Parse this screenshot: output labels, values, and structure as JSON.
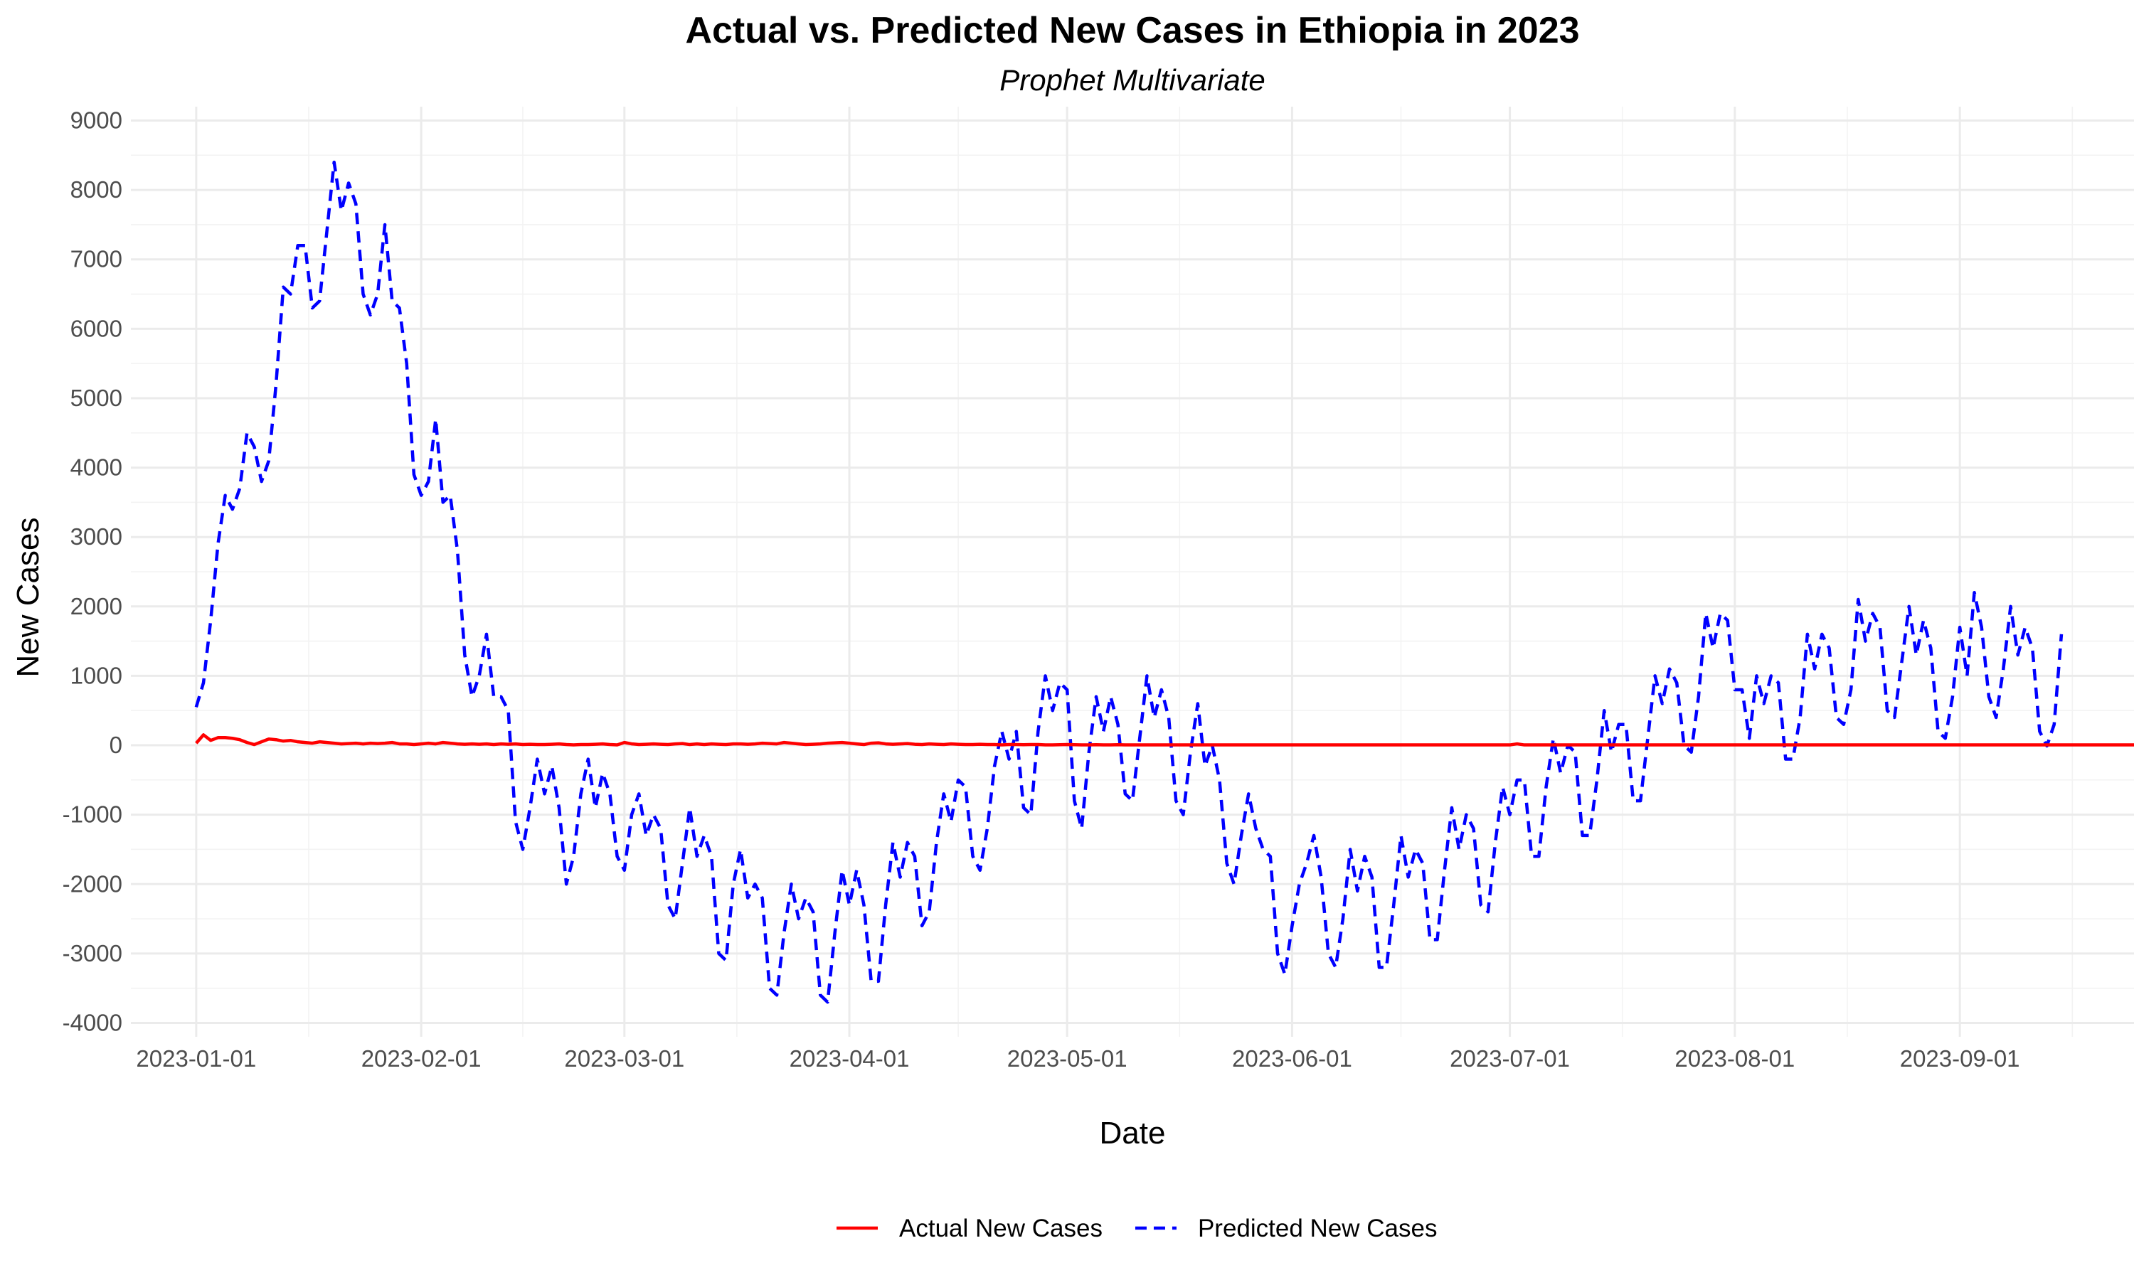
{
  "chart_data": {
    "type": "line",
    "title": "Actual vs. Predicted New Cases in Ethiopia in 2023",
    "subtitle": "Prophet Multivariate",
    "xlabel": "Date",
    "ylabel": "New Cases",
    "xlim": [
      "2022-12-23",
      "2023-09-25"
    ],
    "ylim": [
      -4200,
      9200
    ],
    "x_ticks": [
      "2023-01-01",
      "2023-02-01",
      "2023-03-01",
      "2023-04-01",
      "2023-05-01",
      "2023-06-01",
      "2023-07-01",
      "2023-08-01",
      "2023-09-01"
    ],
    "y_ticks": [
      -4000,
      -3000,
      -2000,
      -1000,
      0,
      1000,
      2000,
      3000,
      4000,
      5000,
      6000,
      7000,
      8000,
      9000
    ],
    "grid": true,
    "legend_position": "bottom",
    "series": [
      {
        "name": "Actual New Cases",
        "color": "#ff0000",
        "line_style": "solid",
        "start_date": "2023-01-01",
        "values": [
          30,
          150,
          70,
          110,
          110,
          100,
          80,
          40,
          10,
          50,
          90,
          80,
          60,
          70,
          50,
          40,
          30,
          50,
          40,
          30,
          20,
          25,
          30,
          20,
          30,
          25,
          30,
          40,
          20,
          20,
          10,
          20,
          30,
          20,
          40,
          30,
          20,
          15,
          20,
          15,
          20,
          10,
          20,
          15,
          20,
          10,
          15,
          10,
          10,
          15,
          20,
          10,
          5,
          10,
          10,
          15,
          20,
          10,
          5,
          40,
          20,
          10,
          15,
          20,
          15,
          10,
          20,
          25,
          10,
          20,
          10,
          20,
          15,
          10,
          20,
          20,
          15,
          20,
          30,
          25,
          20,
          40,
          30,
          20,
          10,
          15,
          20,
          30,
          35,
          40,
          30,
          20,
          10,
          30,
          35,
          20,
          15,
          20,
          25,
          15,
          10,
          20,
          15,
          10,
          20,
          15,
          10,
          10,
          15,
          10,
          10,
          5,
          10,
          10,
          8,
          10,
          10,
          5,
          5,
          8,
          10,
          8,
          5,
          5,
          8,
          5,
          5,
          8,
          5,
          5,
          5,
          5,
          5,
          5,
          5,
          5,
          5,
          5,
          5,
          5,
          5,
          5,
          5,
          5,
          5,
          5,
          5,
          5,
          5,
          5,
          5,
          5,
          5,
          5,
          5,
          5,
          5,
          5,
          5,
          5,
          5,
          5,
          5,
          5,
          5,
          5,
          5,
          5,
          5,
          5,
          5,
          5,
          5,
          5,
          5,
          5,
          5,
          5,
          5,
          5,
          5,
          5,
          20,
          5,
          5,
          5,
          5,
          5,
          5,
          5,
          5,
          5,
          5,
          5,
          5,
          5,
          5,
          5,
          5,
          5,
          5,
          5,
          5,
          5,
          5,
          5,
          5,
          5,
          5,
          5,
          5,
          5,
          5,
          5,
          5,
          5,
          5,
          5,
          5,
          5,
          5,
          5,
          5,
          5,
          5,
          5,
          5,
          5,
          5,
          5,
          5,
          5,
          5,
          5,
          5,
          5,
          5,
          5,
          5,
          5,
          5,
          5,
          5,
          5,
          5,
          5,
          5,
          5,
          5,
          5,
          5,
          5,
          5,
          5,
          5,
          5,
          5,
          5,
          5,
          5,
          5,
          5,
          5,
          5,
          5,
          5,
          5,
          5,
          5,
          40,
          5,
          5,
          5,
          5,
          5,
          5,
          5,
          5,
          5,
          5,
          5,
          5,
          5,
          5,
          5,
          5,
          5,
          5,
          5,
          5,
          5,
          5,
          5,
          5,
          5,
          5,
          5,
          5,
          5,
          5,
          5,
          5,
          5,
          5,
          5,
          5,
          5,
          5,
          5
        ]
      },
      {
        "name": "Predicted New Cases",
        "color": "#0000ff",
        "line_style": "dashed",
        "start_date": "2023-01-01",
        "values": [
          550,
          900,
          1800,
          2900,
          3600,
          3400,
          3700,
          4500,
          4300,
          3800,
          4100,
          5200,
          6600,
          6500,
          7200,
          7200,
          6300,
          6400,
          7400,
          8400,
          7700,
          8100,
          7800,
          6500,
          6200,
          6500,
          7500,
          6400,
          6300,
          5500,
          3900,
          3600,
          3800,
          4700,
          3500,
          3600,
          2800,
          1300,
          700,
          1000,
          1600,
          700,
          700,
          500,
          -1100,
          -1500,
          -900,
          -200,
          -700,
          -300,
          -900,
          -2000,
          -1600,
          -700,
          -200,
          -900,
          -400,
          -700,
          -1600,
          -1800,
          -1000,
          -700,
          -1300,
          -1000,
          -1200,
          -2300,
          -2500,
          -1700,
          -900,
          -1600,
          -1300,
          -1600,
          -3000,
          -3100,
          -2000,
          -1500,
          -2200,
          -2000,
          -2200,
          -3500,
          -3600,
          -2700,
          -2000,
          -2500,
          -2200,
          -2400,
          -3600,
          -3700,
          -2700,
          -1800,
          -2300,
          -1800,
          -2300,
          -3400,
          -3400,
          -2300,
          -1400,
          -1900,
          -1400,
          -1600,
          -2600,
          -2400,
          -1400,
          -700,
          -1100,
          -500,
          -600,
          -1600,
          -1800,
          -1200,
          -300,
          200,
          -200,
          200,
          -900,
          -1000,
          200,
          1000,
          500,
          900,
          800,
          -800,
          -1200,
          -100,
          700,
          200,
          700,
          300,
          -700,
          -800,
          100,
          1000,
          400,
          800,
          400,
          -800,
          -1000,
          -100,
          600,
          -300,
          0,
          -500,
          -1700,
          -2000,
          -1300,
          -700,
          -1200,
          -1500,
          -1600,
          -3000,
          -3300,
          -2600,
          -2000,
          -1700,
          -1300,
          -1900,
          -3000,
          -3200,
          -2500,
          -1500,
          -2100,
          -1600,
          -1900,
          -3200,
          -3200,
          -2300,
          -1300,
          -1900,
          -1500,
          -1700,
          -2800,
          -2800,
          -1800,
          -900,
          -1500,
          -1000,
          -1200,
          -2300,
          -2400,
          -1400,
          -600,
          -1000,
          -500,
          -500,
          -1600,
          -1600,
          -600,
          100,
          -400,
          0,
          -100,
          -1300,
          -1300,
          -500,
          500,
          -100,
          300,
          300,
          -800,
          -800,
          100,
          1000,
          600,
          1100,
          900,
          0,
          -100,
          700,
          1900,
          1400,
          1900,
          1800,
          800,
          800,
          100,
          1000,
          600,
          1000,
          900,
          -200,
          -200,
          400,
          1600,
          1100,
          1600,
          1400,
          400,
          300,
          800,
          2100,
          1500,
          1900,
          1700,
          500,
          400,
          1200,
          2000,
          1300,
          1800,
          1400,
          200,
          100,
          700,
          1700,
          1000,
          2200,
          1700,
          700,
          400,
          1100,
          2000,
          1300,
          1700,
          1400,
          200,
          -10,
          300,
          1600
        ]
      }
    ]
  }
}
